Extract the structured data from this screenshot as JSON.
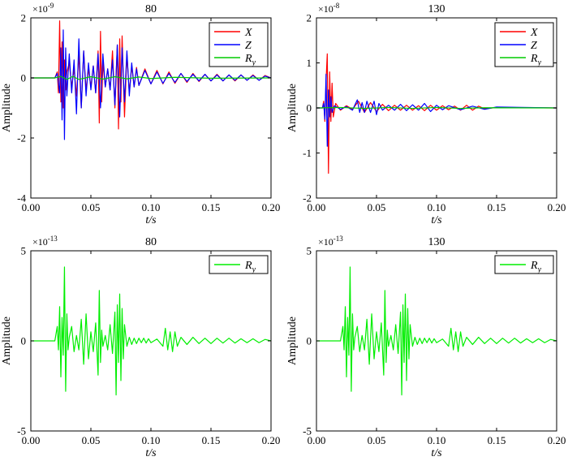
{
  "chart_data": [
    {
      "type": "line",
      "title": "80",
      "xlabel": "t/s",
      "ylabel": "Amplitude",
      "exponent": "×10",
      "exponent_power": "-9",
      "xlim": [
        0,
        0.2
      ],
      "ylim": [
        -4,
        2
      ],
      "xticks": [
        0.0,
        0.05,
        0.1,
        0.15,
        0.2
      ],
      "xtick_labels": [
        "0.00",
        "0.05",
        "0.10",
        "0.15",
        "0.20"
      ],
      "yticks": [
        -4,
        -2,
        0,
        2
      ],
      "ytick_labels": [
        "-4",
        "-2",
        "0",
        "2"
      ],
      "legend_position": "top-right",
      "series": [
        {
          "name": "X",
          "name_sub": "",
          "color": "#ff0000",
          "x": [
            0.0,
            0.02,
            0.022,
            0.023,
            0.024,
            0.025,
            0.026,
            0.027,
            0.028,
            0.029,
            0.03,
            0.032,
            0.034,
            0.036,
            0.038,
            0.04,
            0.042,
            0.044,
            0.046,
            0.048,
            0.05,
            0.052,
            0.054,
            0.056,
            0.057,
            0.058,
            0.059,
            0.06,
            0.062,
            0.064,
            0.066,
            0.068,
            0.07,
            0.072,
            0.073,
            0.074,
            0.075,
            0.076,
            0.078,
            0.08,
            0.082,
            0.084,
            0.086,
            0.088,
            0.09,
            0.095,
            0.1,
            0.105,
            0.11,
            0.115,
            0.12,
            0.125,
            0.13,
            0.135,
            0.14,
            0.145,
            0.15,
            0.155,
            0.16,
            0.165,
            0.17,
            0.175,
            0.18,
            0.185,
            0.19,
            0.195,
            0.2
          ],
          "y": [
            0.0,
            0.0,
            0.2,
            -0.5,
            1.9,
            -0.8,
            1.2,
            -1.0,
            0.6,
            -0.4,
            0.2,
            0.5,
            -0.3,
            0.3,
            -0.6,
            0.8,
            -1.0,
            0.9,
            -0.4,
            0.3,
            -0.3,
            0.4,
            -0.5,
            0.9,
            -1.5,
            1.55,
            -0.8,
            0.5,
            -0.3,
            0.3,
            -0.4,
            0.9,
            -1.0,
            1.1,
            -1.7,
            1.3,
            -0.8,
            1.4,
            -1.3,
            0.8,
            -0.5,
            0.4,
            -0.3,
            0.35,
            -0.25,
            0.3,
            -0.2,
            0.25,
            -0.2,
            0.2,
            -0.18,
            0.15,
            -0.15,
            0.15,
            -0.12,
            0.12,
            -0.1,
            0.12,
            -0.1,
            0.1,
            -0.1,
            0.1,
            -0.08,
            0.1,
            -0.08,
            0.08,
            0.0
          ]
        },
        {
          "name": "Z",
          "name_sub": "",
          "color": "#0000ff",
          "x": [
            0.0,
            0.02,
            0.022,
            0.024,
            0.025,
            0.026,
            0.027,
            0.028,
            0.029,
            0.03,
            0.032,
            0.034,
            0.036,
            0.038,
            0.04,
            0.042,
            0.044,
            0.046,
            0.048,
            0.05,
            0.052,
            0.054,
            0.056,
            0.058,
            0.06,
            0.062,
            0.064,
            0.066,
            0.068,
            0.07,
            0.072,
            0.074,
            0.076,
            0.078,
            0.08,
            0.082,
            0.084,
            0.086,
            0.088,
            0.09,
            0.095,
            0.1,
            0.105,
            0.11,
            0.115,
            0.12,
            0.125,
            0.13,
            0.135,
            0.14,
            0.145,
            0.15,
            0.155,
            0.16,
            0.165,
            0.17,
            0.175,
            0.18,
            0.185,
            0.19,
            0.195,
            0.2
          ],
          "y": [
            0.0,
            0.0,
            0.15,
            -0.5,
            1.0,
            -1.4,
            1.6,
            -2.05,
            1.0,
            -0.6,
            0.8,
            -0.5,
            0.6,
            -1.2,
            1.3,
            -1.0,
            0.9,
            -0.6,
            0.5,
            -0.4,
            0.4,
            -0.5,
            0.8,
            -1.0,
            0.8,
            -0.3,
            0.3,
            -0.4,
            0.6,
            -0.9,
            1.1,
            -1.3,
            1.0,
            -0.8,
            0.9,
            -0.6,
            0.5,
            -0.3,
            0.3,
            -0.25,
            0.25,
            -0.2,
            0.2,
            -0.18,
            0.15,
            -0.15,
            0.15,
            -0.12,
            0.12,
            -0.1,
            0.12,
            -0.1,
            0.1,
            -0.1,
            0.1,
            -0.08,
            0.1,
            -0.08,
            0.08,
            -0.08,
            0.06,
            0.0
          ]
        },
        {
          "name": "R",
          "name_sub": "y",
          "color": "#00cc00",
          "x": [
            0.0,
            0.02,
            0.025,
            0.03,
            0.035,
            0.04,
            0.05,
            0.06,
            0.07,
            0.08,
            0.09,
            0.1,
            0.12,
            0.15,
            0.2
          ],
          "y": [
            0.0,
            0.0,
            0.05,
            -0.05,
            0.05,
            -0.05,
            0.04,
            -0.04,
            0.04,
            -0.03,
            0.03,
            -0.02,
            0.02,
            -0.01,
            0.0
          ]
        }
      ]
    },
    {
      "type": "line",
      "title": "130",
      "xlabel": "t/s",
      "ylabel": "Amplitude",
      "exponent": "×10",
      "exponent_power": "-8",
      "xlim": [
        0,
        0.2
      ],
      "ylim": [
        -2,
        2
      ],
      "xticks": [
        0.0,
        0.05,
        0.1,
        0.15,
        0.2
      ],
      "xtick_labels": [
        "0.00",
        "0.05",
        "0.10",
        "0.15",
        "0.20"
      ],
      "yticks": [
        -2,
        -1,
        0,
        1,
        2
      ],
      "ytick_labels": [
        "-2",
        "-1",
        "0",
        "1",
        "2"
      ],
      "legend_position": "top-right",
      "series": [
        {
          "name": "X",
          "name_sub": "",
          "color": "#ff0000",
          "x": [
            0.0,
            0.005,
            0.006,
            0.007,
            0.008,
            0.009,
            0.01,
            0.011,
            0.012,
            0.013,
            0.014,
            0.016,
            0.02,
            0.025,
            0.03,
            0.035,
            0.04,
            0.045,
            0.05,
            0.055,
            0.06,
            0.065,
            0.07,
            0.075,
            0.08,
            0.085,
            0.09,
            0.095,
            0.1,
            0.105,
            0.11,
            0.115,
            0.12,
            0.125,
            0.13,
            0.135,
            0.14,
            0.15,
            0.2
          ],
          "y": [
            0.0,
            0.0,
            0.15,
            -0.3,
            0.6,
            1.2,
            -1.45,
            0.8,
            -0.3,
            0.55,
            -0.2,
            0.1,
            -0.05,
            0.05,
            -0.03,
            0.15,
            -0.1,
            0.12,
            -0.08,
            0.08,
            -0.06,
            0.06,
            -0.05,
            0.06,
            -0.05,
            0.05,
            -0.06,
            0.06,
            -0.05,
            0.05,
            -0.04,
            0.04,
            -0.05,
            0.06,
            -0.05,
            0.04,
            -0.02,
            0.01,
            0.0
          ]
        },
        {
          "name": "Z",
          "name_sub": "",
          "color": "#0000ff",
          "x": [
            0.0,
            0.005,
            0.006,
            0.007,
            0.008,
            0.009,
            0.01,
            0.011,
            0.012,
            0.013,
            0.015,
            0.02,
            0.025,
            0.03,
            0.034,
            0.036,
            0.038,
            0.04,
            0.042,
            0.045,
            0.048,
            0.05,
            0.052,
            0.055,
            0.06,
            0.065,
            0.07,
            0.075,
            0.08,
            0.085,
            0.09,
            0.095,
            0.1,
            0.105,
            0.11,
            0.12,
            0.13,
            0.14,
            0.15,
            0.2
          ],
          "y": [
            0.0,
            0.0,
            0.1,
            -0.25,
            0.75,
            -0.85,
            0.4,
            -0.2,
            0.25,
            -0.1,
            0.05,
            -0.03,
            0.03,
            -0.05,
            0.18,
            -0.1,
            0.12,
            -0.1,
            0.15,
            -0.1,
            0.15,
            -0.15,
            0.1,
            -0.05,
            0.06,
            -0.05,
            0.08,
            -0.06,
            0.07,
            -0.05,
            0.1,
            -0.08,
            0.06,
            -0.04,
            0.05,
            -0.04,
            0.04,
            -0.03,
            0.02,
            0.0
          ]
        },
        {
          "name": "R",
          "name_sub": "y",
          "color": "#00cc00",
          "x": [
            0.0,
            0.02,
            0.04,
            0.06,
            0.08,
            0.1,
            0.12,
            0.14,
            0.2
          ],
          "y": [
            0.0,
            0.01,
            -0.01,
            0.01,
            -0.01,
            0.01,
            -0.01,
            0.005,
            0.0
          ]
        }
      ]
    },
    {
      "type": "line",
      "title": "80",
      "xlabel": "t/s",
      "ylabel": "Amplitude",
      "exponent": "×10",
      "exponent_power": "-13",
      "xlim": [
        0,
        0.2
      ],
      "ylim": [
        -5,
        5
      ],
      "xticks": [
        0.0,
        0.05,
        0.1,
        0.15,
        0.2
      ],
      "xtick_labels": [
        "0.00",
        "0.05",
        "0.10",
        "0.15",
        "0.20"
      ],
      "yticks": [
        -5,
        0,
        5
      ],
      "ytick_labels": [
        "-5",
        "0",
        "5"
      ],
      "legend_position": "top-right",
      "series": [
        {
          "name": "R",
          "name_sub": "y",
          "color": "#00ee00",
          "x": [
            0.0,
            0.02,
            0.022,
            0.023,
            0.024,
            0.025,
            0.026,
            0.027,
            0.028,
            0.029,
            0.03,
            0.031,
            0.032,
            0.034,
            0.036,
            0.038,
            0.04,
            0.042,
            0.044,
            0.046,
            0.048,
            0.05,
            0.052,
            0.054,
            0.056,
            0.057,
            0.058,
            0.059,
            0.06,
            0.062,
            0.064,
            0.066,
            0.068,
            0.07,
            0.071,
            0.072,
            0.073,
            0.074,
            0.075,
            0.076,
            0.077,
            0.078,
            0.08,
            0.082,
            0.084,
            0.086,
            0.088,
            0.09,
            0.092,
            0.094,
            0.096,
            0.098,
            0.1,
            0.105,
            0.11,
            0.112,
            0.114,
            0.116,
            0.118,
            0.12,
            0.122,
            0.125,
            0.13,
            0.135,
            0.14,
            0.145,
            0.15,
            0.155,
            0.16,
            0.165,
            0.17,
            0.175,
            0.18,
            0.185,
            0.19,
            0.195,
            0.2
          ],
          "y": [
            0.0,
            0.0,
            0.8,
            -0.5,
            1.9,
            -2.0,
            1.3,
            -0.8,
            4.1,
            -2.8,
            1.5,
            -0.5,
            0.2,
            0.8,
            -0.6,
            0.3,
            -0.5,
            1.2,
            -1.3,
            1.5,
            -1.0,
            0.5,
            -0.6,
            1.0,
            -1.9,
            2.8,
            -1.2,
            0.6,
            -0.3,
            0.3,
            -0.5,
            0.9,
            -0.7,
            1.6,
            -3.0,
            2.0,
            -1.2,
            2.6,
            -2.2,
            1.8,
            -1.0,
            0.9,
            -0.3,
            0.2,
            -0.2,
            0.15,
            -0.15,
            0.15,
            -0.1,
            0.15,
            -0.12,
            0.12,
            -0.1,
            0.1,
            -0.3,
            0.7,
            -0.5,
            0.5,
            -0.6,
            0.5,
            -0.3,
            0.2,
            -0.2,
            0.2,
            -0.15,
            0.15,
            -0.15,
            0.15,
            -0.12,
            0.15,
            -0.12,
            0.12,
            -0.1,
            0.12,
            -0.1,
            0.08,
            0.0
          ]
        }
      ]
    },
    {
      "type": "line",
      "title": "130",
      "xlabel": "t/s",
      "ylabel": "Amplitude",
      "exponent": "×10",
      "exponent_power": "-13",
      "xlim": [
        0,
        0.2
      ],
      "ylim": [
        -5,
        5
      ],
      "xticks": [
        0.0,
        0.05,
        0.1,
        0.15,
        0.2
      ],
      "xtick_labels": [
        "0.00",
        "0.05",
        "0.10",
        "0.15",
        "0.20"
      ],
      "yticks": [
        -5,
        0,
        5
      ],
      "ytick_labels": [
        "-5",
        "0",
        "5"
      ],
      "legend_position": "top-right",
      "series": [
        {
          "name": "R",
          "name_sub": "y",
          "color": "#00ee00",
          "x": [
            0.0,
            0.02,
            0.022,
            0.023,
            0.024,
            0.025,
            0.026,
            0.027,
            0.028,
            0.029,
            0.03,
            0.031,
            0.032,
            0.034,
            0.036,
            0.038,
            0.04,
            0.042,
            0.044,
            0.046,
            0.048,
            0.05,
            0.052,
            0.054,
            0.056,
            0.057,
            0.058,
            0.059,
            0.06,
            0.062,
            0.064,
            0.066,
            0.068,
            0.07,
            0.071,
            0.072,
            0.073,
            0.074,
            0.075,
            0.076,
            0.077,
            0.078,
            0.08,
            0.082,
            0.084,
            0.086,
            0.088,
            0.09,
            0.092,
            0.094,
            0.096,
            0.098,
            0.1,
            0.105,
            0.11,
            0.112,
            0.114,
            0.116,
            0.118,
            0.12,
            0.122,
            0.125,
            0.13,
            0.135,
            0.14,
            0.145,
            0.15,
            0.155,
            0.16,
            0.165,
            0.17,
            0.175,
            0.18,
            0.185,
            0.19,
            0.195,
            0.2
          ],
          "y": [
            0.0,
            0.0,
            0.8,
            -0.5,
            1.9,
            -2.0,
            1.3,
            -0.8,
            4.1,
            -2.8,
            1.5,
            -0.5,
            0.2,
            0.8,
            -0.6,
            0.3,
            -0.5,
            1.2,
            -1.3,
            1.5,
            -1.0,
            0.5,
            -0.6,
            1.0,
            -1.9,
            2.8,
            -1.2,
            0.6,
            -0.3,
            0.3,
            -0.5,
            0.9,
            -0.7,
            1.6,
            -3.0,
            2.0,
            -1.2,
            2.6,
            -2.2,
            1.8,
            -1.0,
            0.9,
            -0.3,
            0.2,
            -0.2,
            0.15,
            -0.15,
            0.15,
            -0.1,
            0.15,
            -0.12,
            0.12,
            -0.1,
            0.1,
            -0.3,
            0.7,
            -0.5,
            0.5,
            -0.6,
            0.5,
            -0.3,
            0.2,
            -0.2,
            0.2,
            -0.15,
            0.15,
            -0.15,
            0.15,
            -0.12,
            0.15,
            -0.12,
            0.12,
            -0.1,
            0.12,
            -0.1,
            0.08,
            0.0
          ]
        }
      ]
    }
  ]
}
